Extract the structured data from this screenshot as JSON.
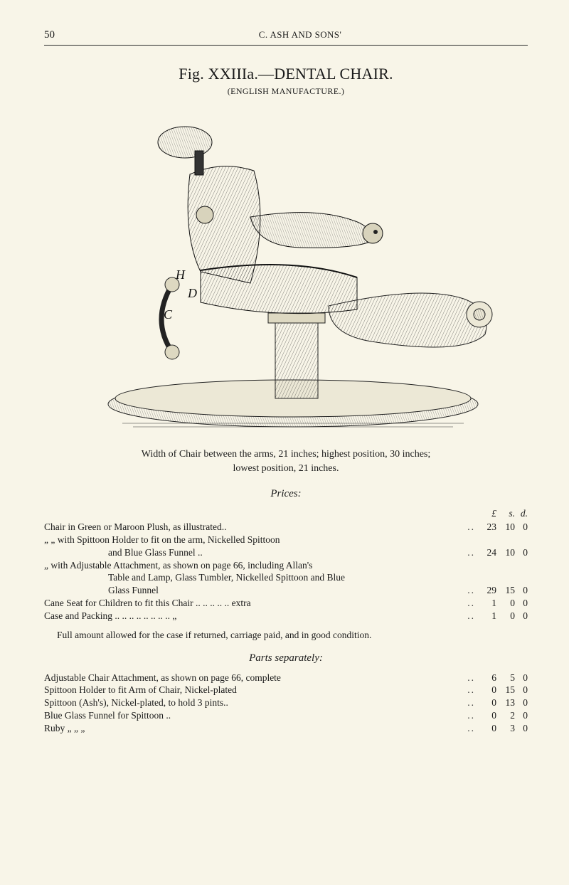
{
  "page_number": "50",
  "running_head": "C. ASH AND SONS'",
  "figure": {
    "title": "Fig. XXIIIa.—DENTAL CHAIR.",
    "subtitle": "(ENGLISH MANUFACTURE.)",
    "illustration_labels": {
      "H": "H",
      "D": "D",
      "C": "C"
    },
    "caption_line1": "Width of Chair between the arms, 21 inches; highest position, 30 inches;",
    "caption_line2": "lowest position, 21 inches."
  },
  "currency_header": {
    "pounds": "£",
    "shillings": "s.",
    "pence": "d."
  },
  "sections": {
    "prices": {
      "heading": "Prices:",
      "rows": [
        {
          "desc": "Chair in Green or Maroon Plush, as illustrated..",
          "pounds": "23",
          "shillings": "10",
          "pence": "0"
        },
        {
          "desc": "„        „  with Spittoon Holder to fit on the arm, Nickelled Spittoon",
          "cont": true
        },
        {
          "desc": "and Blue Glass Funnel ..",
          "indent": "indent2",
          "pounds": "24",
          "shillings": "10",
          "pence": "0"
        },
        {
          "desc": "„   with Adjustable Attachment, as shown on page 66, including Allan's",
          "cont": true
        },
        {
          "desc": "Table and Lamp, Glass Tumbler, Nickelled Spittoon and Blue",
          "indent": "indent2",
          "cont": true
        },
        {
          "desc": "Glass Funnel",
          "indent": "indent2",
          "pounds": "29",
          "shillings": "15",
          "pence": "0"
        },
        {
          "desc": "Cane Seat for Children to fit this Chair ..        ..        ..        ..        .. extra",
          "pounds": "1",
          "shillings": "0",
          "pence": "0"
        },
        {
          "desc": "Case and Packing ..        ..        ..        ..        ..        ..        ..        ..   „",
          "pounds": "1",
          "shillings": "0",
          "pence": "0"
        }
      ],
      "note": "Full amount allowed for the case if returned, carriage paid, and in good condition."
    },
    "parts": {
      "heading": "Parts separately:",
      "rows": [
        {
          "desc": "Adjustable Chair Attachment, as shown on page 66, complete",
          "pounds": "6",
          "shillings": "5",
          "pence": "0"
        },
        {
          "desc": "Spittoon Holder to fit Arm of Chair, Nickel-plated",
          "pounds": "0",
          "shillings": "15",
          "pence": "0"
        },
        {
          "desc": "Spittoon (Ash's), Nickel-plated, to hold 3 pints..",
          "pounds": "0",
          "shillings": "13",
          "pence": "0"
        },
        {
          "desc": "Blue Glass Funnel for Spittoon  ..",
          "pounds": "0",
          "shillings": "2",
          "pence": "0"
        },
        {
          "desc": "Ruby        „            „            „",
          "pounds": "0",
          "shillings": "3",
          "pence": "0"
        }
      ]
    }
  },
  "style": {
    "background": "#f8f5e8",
    "text": "#1a1a1a",
    "body_font_size": 14,
    "title_font_size": 22
  }
}
